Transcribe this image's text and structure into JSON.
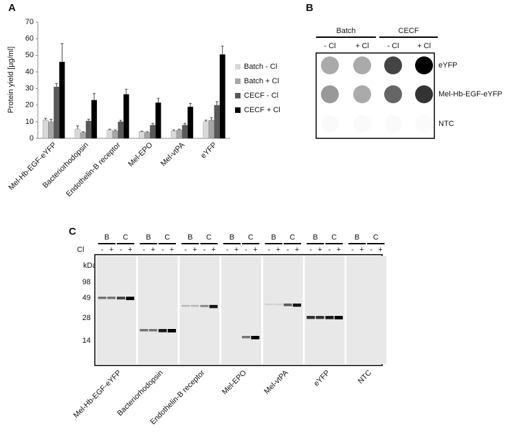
{
  "chart_data": {
    "type": "bar",
    "panel_label": "A",
    "y_label": "Protein yield [µg/ml]",
    "categories": [
      "Mel-Hb-EGF-eYFP",
      "Bacteriorhodopsin",
      "Endothelin-B receptor",
      "Mel-EPO",
      "Mel-vtPA",
      "eYFP"
    ],
    "series": [
      {
        "name": "Batch - Cl",
        "color": "#d9d9d9",
        "values": [
          11,
          5.5,
          5,
          4,
          4.5,
          10
        ],
        "errors": [
          1,
          2,
          0.5,
          0.3,
          0.5,
          1
        ]
      },
      {
        "name": "Batch + Cl",
        "color": "#a6a6a6",
        "values": [
          10,
          3.5,
          4.5,
          3.5,
          5,
          11
        ],
        "errors": [
          1.5,
          0.5,
          0.5,
          0.5,
          0.5,
          1.5
        ]
      },
      {
        "name": "CECF - Cl",
        "color": "#595959",
        "values": [
          31,
          10.5,
          10,
          8,
          8,
          20
        ],
        "errors": [
          2,
          1,
          0.8,
          1,
          1,
          2
        ]
      },
      {
        "name": "CECF + Cl",
        "color": "#000000",
        "values": [
          46,
          23,
          26.5,
          21.5,
          19,
          50.5
        ],
        "errors": [
          11,
          4,
          3,
          2.5,
          2,
          5
        ]
      }
    ],
    "ylim": [
      0,
      70
    ],
    "yticks": [
      0,
      10,
      20,
      30,
      40,
      50,
      60,
      70
    ],
    "grid": false,
    "legend": "right"
  },
  "dot_blot": {
    "label": "B",
    "groups": [
      "Batch",
      "CECF"
    ],
    "conditions": [
      "- Cl",
      "+ Cl"
    ],
    "rows": [
      "eYFP",
      "Mel-Hb-EGF-eYFP",
      "NTC"
    ]
  },
  "gel": {
    "label": "C",
    "cl_label": "Cl",
    "kda_label": "kDa",
    "markers": [
      "98",
      "49",
      "28",
      "14"
    ],
    "lanes": [
      "B",
      "C"
    ],
    "signs": [
      "-",
      "+"
    ],
    "samples": [
      "Mel-Hb-EGF-eYFP",
      "Bacteriorhodopsin",
      "Endothelin-B receptor",
      "Mel-EPO",
      "Mel-vtPA",
      "eYFP",
      "NTC"
    ]
  }
}
